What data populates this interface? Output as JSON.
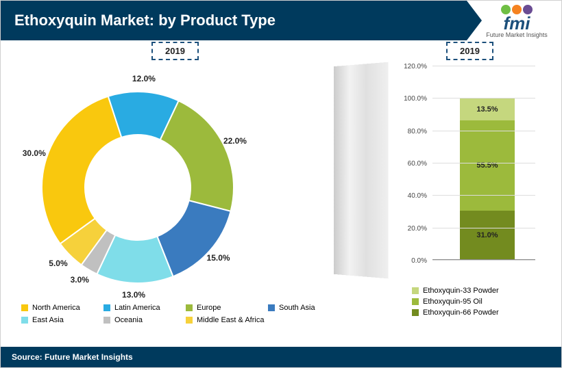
{
  "header": {
    "title": "Ethoxyquin Market: by Product Type"
  },
  "logo": {
    "text": "fmi",
    "subtitle": "Future Market Insights",
    "icon_colors": [
      "#6fbf44",
      "#f58220",
      "#6a4c93"
    ]
  },
  "donut": {
    "year_label": "2019",
    "inner_radius": 0.55,
    "segments": [
      {
        "label": "Latin America",
        "value": 12.0,
        "color": "#29abe2",
        "text": "12.0%"
      },
      {
        "label": "Europe",
        "value": 22.0,
        "color": "#9cba3c",
        "text": "22.0%"
      },
      {
        "label": "South Asia",
        "value": 15.0,
        "color": "#3a7bbf",
        "text": "15.0%"
      },
      {
        "label": "East Asia",
        "value": 13.0,
        "color": "#7fdde9",
        "text": "13.0%"
      },
      {
        "label": "Oceania",
        "value": 3.0,
        "color": "#c0c0c0",
        "text": "3.0%"
      },
      {
        "label": "Middle East & Africa",
        "value": 5.0,
        "color": "#f6d13b",
        "text": "5.0%"
      },
      {
        "label": "North America",
        "value": 30.0,
        "color": "#f9c80e",
        "text": "30.0%"
      }
    ],
    "legend_order": [
      {
        "label": "North America",
        "color": "#f9c80e"
      },
      {
        "label": "Latin America",
        "color": "#29abe2"
      },
      {
        "label": "Europe",
        "color": "#9cba3c"
      },
      {
        "label": "South Asia",
        "color": "#3a7bbf"
      },
      {
        "label": "East Asia",
        "color": "#7fdde9"
      },
      {
        "label": "Oceania",
        "color": "#c0c0c0"
      },
      {
        "label": "Middle East & Africa",
        "color": "#f6d13b"
      }
    ]
  },
  "bar": {
    "year_label": "2019",
    "ymax": 120,
    "ytick_step": 20,
    "yticks": [
      "0.0%",
      "20.0%",
      "40.0%",
      "60.0%",
      "80.0%",
      "100.0%",
      "120.0%"
    ],
    "segments": [
      {
        "label": "Ethoxyquin-66 Powder",
        "value": 31.0,
        "color": "#738b1f",
        "text": "31.0%"
      },
      {
        "label": "Ethoxyquin-95 Oil",
        "value": 55.5,
        "color": "#9cba3c",
        "text": "55.5%"
      },
      {
        "label": "Ethoxyquin-33 Powder",
        "value": 13.5,
        "color": "#c5d77e",
        "text": "13.5%"
      }
    ],
    "legend_order": [
      {
        "label": "Ethoxyquin-33 Powder",
        "color": "#c5d77e"
      },
      {
        "label": "Ethoxyquin-95 Oil",
        "color": "#9cba3c"
      },
      {
        "label": "Ethoxyquin-66 Powder",
        "color": "#738b1f"
      }
    ]
  },
  "footer": {
    "text": "Source: Future Market Insights"
  }
}
